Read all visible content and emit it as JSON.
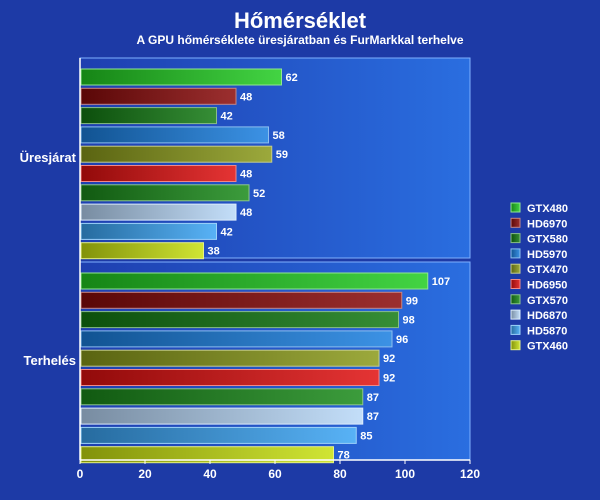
{
  "chart_data": {
    "type": "bar",
    "orientation": "horizontal",
    "title": "Hőmérséklet",
    "subtitle": "A GPU hőmérséklete üresjáratban és FurMarkkal terhelve",
    "xlabel": "",
    "ylabel": "",
    "xlim": [
      0,
      120
    ],
    "x_ticks": [
      "0",
      "20",
      "40",
      "60",
      "80",
      "100",
      "120"
    ],
    "grid": false,
    "legend_position": "right",
    "groups": [
      "Üresjárat",
      "Terhelés"
    ],
    "series": [
      {
        "name": "GTX480",
        "color": "#22cc22",
        "values": [
          62,
          107
        ]
      },
      {
        "name": "HD6970",
        "color": "#8a0a0a",
        "values": [
          48,
          99
        ]
      },
      {
        "name": "GTX580",
        "color": "#127a12",
        "values": [
          42,
          98
        ]
      },
      {
        "name": "HD5970",
        "color": "#1a7fe0",
        "values": [
          58,
          96
        ]
      },
      {
        "name": "GTX470",
        "color": "#8a9a1a",
        "values": [
          59,
          92
        ]
      },
      {
        "name": "HD6950",
        "color": "#e01010",
        "values": [
          48,
          92
        ]
      },
      {
        "name": "GTX570",
        "color": "#1a8a1a",
        "values": [
          52,
          87
        ]
      },
      {
        "name": "HD6870",
        "color": "#b8d8f8",
        "values": [
          48,
          87
        ]
      },
      {
        "name": "HD5870",
        "color": "#3aa4f4",
        "values": [
          42,
          85
        ]
      },
      {
        "name": "GTX460",
        "color": "#c8e010",
        "values": [
          38,
          78
        ]
      }
    ]
  }
}
